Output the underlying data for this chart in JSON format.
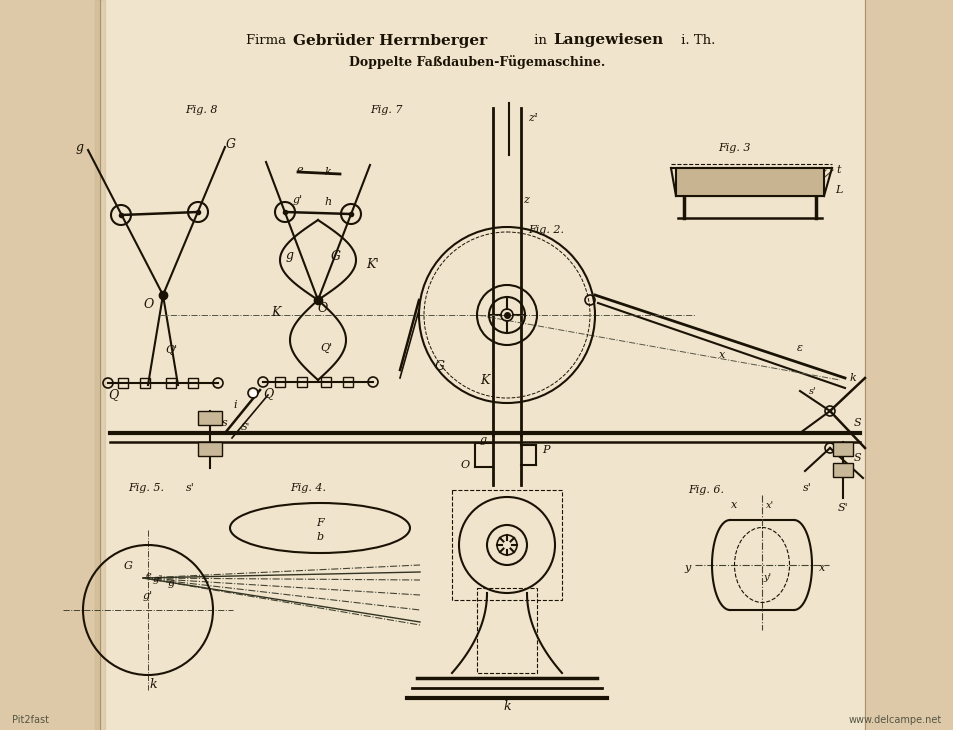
{
  "bg_color": "#f0e4cc",
  "left_strip_color": "#ddc9a8",
  "right_strip_color": "#ddc9a8",
  "page_color": "#ede0c4",
  "title_line1_small": "Firma ",
  "title_line1_caps": "Gebrüder Herrnberger",
  "title_line1_small2": " in ",
  "title_line1_caps2": "Langewiesen",
  "title_line1_small3": " i. Th.",
  "title_line2": "Doppelte Faßdauben-Fügemaschine.",
  "watermark_left": "Pit2fast",
  "watermark_right": "www.delcampe.net",
  "line_color": "#1a1205",
  "text_color": "#1a1205"
}
